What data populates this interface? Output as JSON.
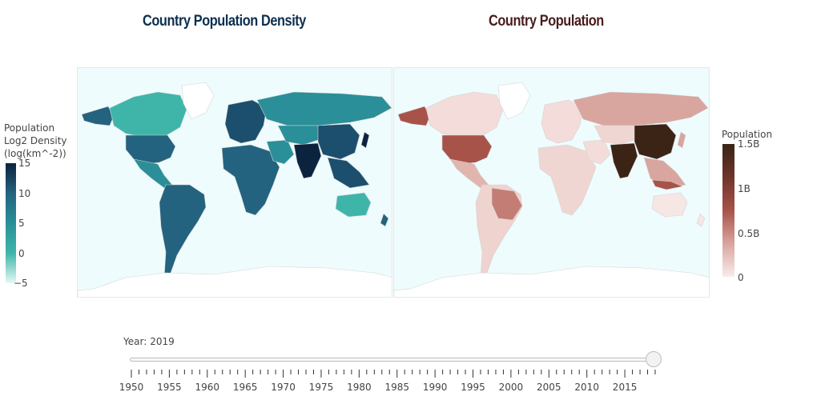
{
  "titles": {
    "left": "Country Population Density",
    "right": "Country Population",
    "left_color": "#0b2f4f",
    "right_color": "#4a1c1c"
  },
  "colorbar_left": {
    "title_lines": [
      "Population",
      "Log2 Density",
      "(log(km^-2))"
    ],
    "ticks": [
      "15",
      "10",
      "5",
      "0",
      "−5"
    ],
    "tick_values": [
      15,
      10,
      5,
      0,
      -5
    ],
    "range": [
      -5,
      15
    ],
    "colors": [
      "#e6f8f4",
      "#3fb5aa",
      "#2a8f98",
      "#24637f",
      "#0c2340"
    ]
  },
  "colorbar_right": {
    "title": "Population",
    "ticks": [
      "1.5B",
      "1B",
      "0.5B",
      "0"
    ],
    "tick_values": [
      1500000000,
      1000000000,
      500000000,
      0
    ],
    "range": [
      0,
      1500000000
    ],
    "colors": [
      "#f7ecea",
      "#d9a59f",
      "#a8534a",
      "#6e342a",
      "#3b2416"
    ]
  },
  "slider": {
    "label_prefix": "Year:",
    "current_value": "2019",
    "min": 1950,
    "max": 2019,
    "value": 2019,
    "labels": [
      "1950",
      "1955",
      "1960",
      "1965",
      "1970",
      "1975",
      "1980",
      "1985",
      "1990",
      "1995",
      "2000",
      "2005",
      "2010",
      "2015"
    ]
  },
  "map": {
    "ocean_color": "#eefcfd",
    "land_nodata_color": "#ffffff",
    "border_color": "#d6d6d6"
  },
  "chart_data": [
    {
      "type": "heatmap",
      "title": "Country Population Density",
      "colorbar_title": "Population Log2 Density (log(km^-2))",
      "ylim": [
        -5,
        15
      ]
    },
    {
      "type": "heatmap",
      "title": "Country Population",
      "colorbar_title": "Population",
      "ylim": [
        0,
        1500000000
      ]
    }
  ]
}
